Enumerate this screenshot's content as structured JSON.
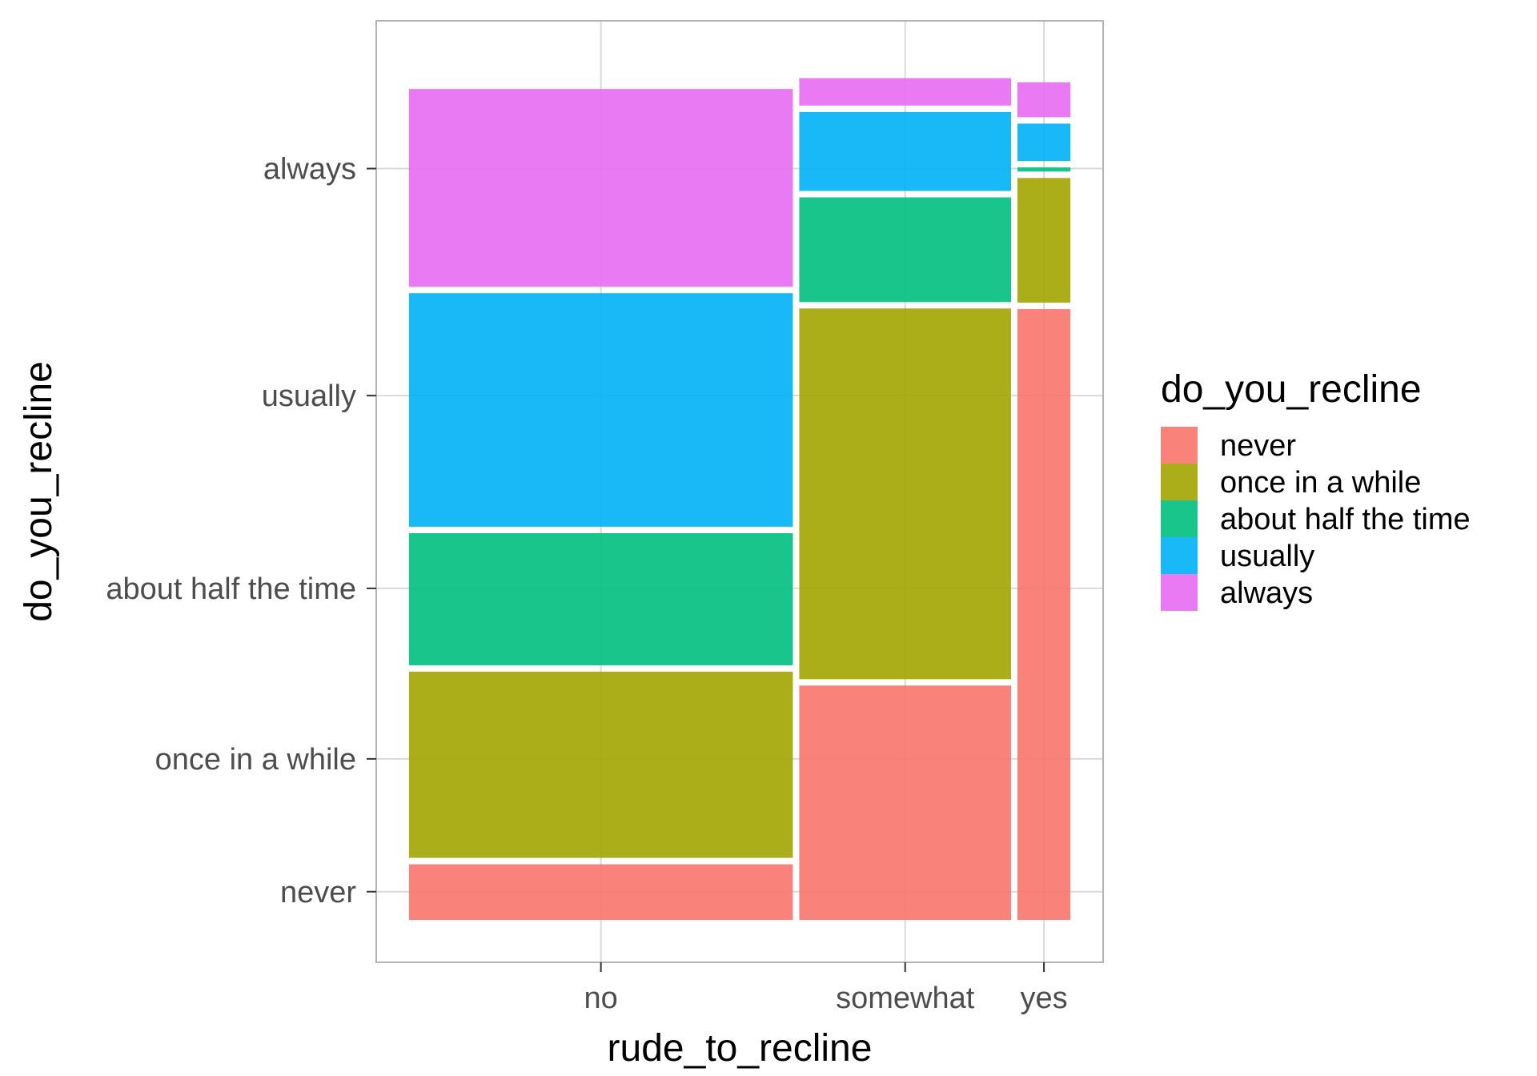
{
  "chart_data": {
    "type": "mosaic",
    "title": "",
    "xlabel": "rude_to_recline",
    "ylabel": "do_you_recline",
    "x_categories": [
      "no",
      "somewhat",
      "yes"
    ],
    "x_widths": [
      0.58,
      0.32,
      0.08
    ],
    "fill_categories": [
      "never",
      "once in a while",
      "about half the time",
      "usually",
      "always"
    ],
    "y_tick_labels": [
      "never",
      "once in a while",
      "about half the time",
      "usually",
      "always"
    ],
    "y_tick_values": [
      0.033,
      0.188,
      0.387,
      0.612,
      0.877
    ],
    "proportions": {
      "no": {
        "never": 0.067,
        "once in a while": 0.224,
        "about half the time": 0.159,
        "usually": 0.281,
        "always": 0.238
      },
      "somewhat": {
        "never": 0.282,
        "once in a while": 0.446,
        "about half the time": 0.126,
        "usually": 0.095,
        "always": 0.033
      },
      "yes": {
        "never": 0.735,
        "once in a while": 0.15,
        "about half the time": 0.005,
        "usually": 0.045,
        "always": 0.042
      }
    },
    "colors": {
      "never": "#F8766D",
      "once in a while": "#A3A500",
      "about half the time": "#00BF7D",
      "usually": "#00B0F6",
      "always": "#E76BF3"
    },
    "legend": {
      "title": "do_you_recline",
      "position": "right"
    },
    "grid": true
  }
}
